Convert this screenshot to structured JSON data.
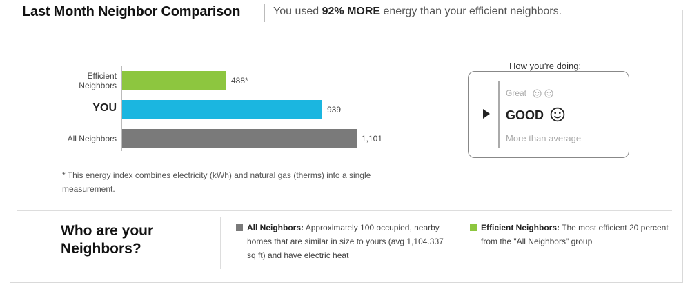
{
  "header": {
    "title": "Last Month Neighbor Comparison",
    "subtitle_prefix": "You used ",
    "subtitle_highlight": "92% MORE",
    "subtitle_suffix": " energy than your efficient neighbors."
  },
  "chart_data": {
    "type": "bar",
    "orientation": "horizontal",
    "categories": [
      "Efficient\nNeighbors",
      "YOU",
      "All Neighbors"
    ],
    "values": [
      488,
      939,
      1101
    ],
    "value_labels": [
      "488*",
      "939",
      "1,101"
    ],
    "colors": [
      "#8dc63f",
      "#1bb6e0",
      "#7a7a7a"
    ],
    "xlim": [
      0,
      1230
    ],
    "grid": false
  },
  "footnote": "* This energy index combines electricity (kWh) and natural gas (therms) into a single measurement.",
  "doing": {
    "title": "How you’re doing:",
    "great": "Great",
    "good": "GOOD",
    "more": "More than average",
    "great_icons": [
      "smiley-icon",
      "smiley-icon"
    ],
    "good_icon": "smiley-icon"
  },
  "who": {
    "title": "Who are your Neighbors?",
    "all_label": "All Neighbors:",
    "all_text": "Approximately 100 occupied, nearby homes that are similar in size to yours (avg 1,104.337 sq ft) and have electric heat",
    "all_color": "#7a7a7a",
    "eff_label": "Efficient Neighbors:",
    "eff_text": "The most efficient 20 percent from the \"All Neighbors\" group",
    "eff_color": "#8dc63f"
  }
}
